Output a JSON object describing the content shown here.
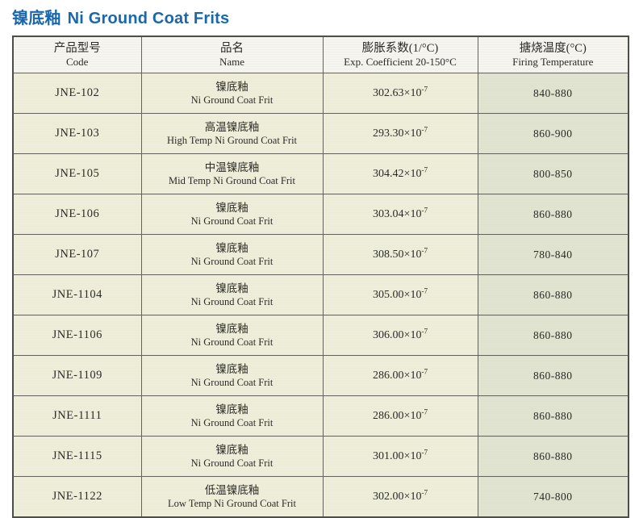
{
  "page": {
    "title_cn": "镍底釉",
    "title_en": "Ni Ground Coat Frits",
    "title_color": "#1b67ab"
  },
  "table": {
    "headers": [
      {
        "cn": "产品型号",
        "en": "Code"
      },
      {
        "cn": "品名",
        "en": "Name"
      },
      {
        "cn": "膨胀系数(1/°C)",
        "en": "Exp. Coefficient 20-150°C"
      },
      {
        "cn": "搪烧温度(°C)",
        "en": "Firing Temperature"
      }
    ],
    "units": {
      "coeff_base": "×10",
      "coeff_exponent": "-7"
    },
    "rows": [
      {
        "code": "JNE-102",
        "name_cn": "镍底釉",
        "name_en": "Ni Ground Coat Frit",
        "coefficient": "302.63",
        "firing_temperature": "840-880"
      },
      {
        "code": "JNE-103",
        "name_cn": "高温镍底釉",
        "name_en": "High Temp Ni Ground Coat Frit",
        "coefficient": "293.30",
        "firing_temperature": "860-900"
      },
      {
        "code": "JNE-105",
        "name_cn": "中温镍底釉",
        "name_en": "Mid Temp Ni Ground Coat Frit",
        "coefficient": "304.42",
        "firing_temperature": "800-850"
      },
      {
        "code": "JNE-106",
        "name_cn": "镍底釉",
        "name_en": "Ni Ground Coat Frit",
        "coefficient": "303.04",
        "firing_temperature": "860-880"
      },
      {
        "code": "JNE-107",
        "name_cn": "镍底釉",
        "name_en": "Ni Ground Coat Frit",
        "coefficient": "308.50",
        "firing_temperature": "780-840"
      },
      {
        "code": "JNE-1104",
        "name_cn": "镍底釉",
        "name_en": "Ni Ground Coat Frit",
        "coefficient": "305.00",
        "firing_temperature": "860-880"
      },
      {
        "code": "JNE-1106",
        "name_cn": "镍底釉",
        "name_en": "Ni Ground Coat Frit",
        "coefficient": "306.00",
        "firing_temperature": "860-880"
      },
      {
        "code": "JNE-1109",
        "name_cn": "镍底釉",
        "name_en": "Ni Ground Coat Frit",
        "coefficient": "286.00",
        "firing_temperature": "860-880"
      },
      {
        "code": "JNE-1111",
        "name_cn": "镍底釉",
        "name_en": "Ni Ground Coat Frit",
        "coefficient": "286.00",
        "firing_temperature": "860-880"
      },
      {
        "code": "JNE-1115",
        "name_cn": "镍底釉",
        "name_en": "Ni Ground Coat Frit",
        "coefficient": "301.00",
        "firing_temperature": "860-880"
      },
      {
        "code": "JNE-1122",
        "name_cn": "低温镍底釉",
        "name_en": "Low Temp Ni Ground Coat Frit",
        "coefficient": "302.00",
        "firing_temperature": "740-800"
      }
    ],
    "colors": {
      "header_bg": "#f6f5ef",
      "body_bg": "#efeeda",
      "temp_column_bg": "#e0e4d1",
      "border": "#4e4e49"
    }
  }
}
